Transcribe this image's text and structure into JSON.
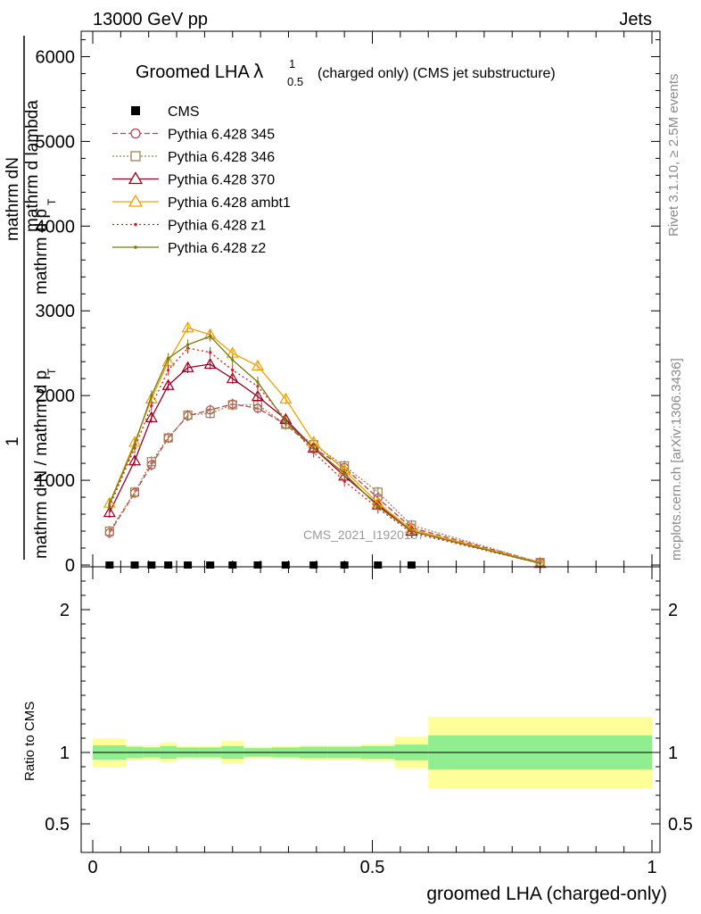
{
  "header": {
    "left": "13000 GeV pp",
    "right": "Jets"
  },
  "side": {
    "rivet": "Rivet 3.1.10, ≥ 2.5M events",
    "mcplots": "mcplots.cern.ch [arXiv:1306.3436]"
  },
  "watermark": "CMS_2021_I1920187",
  "chart_data": [
    {
      "type": "line",
      "title": {
        "main": "Groomed LHA ",
        "lambda": "λ",
        "sup": "1",
        "sub": "0.5",
        "rest": "(charged only) (CMS jet substructure)"
      },
      "ylabel": {
        "num_1": "1",
        "num_1b": "mathrm dN",
        "num_2": "mathrm d p",
        "num_2sub": "T",
        "num_2b": "mathrm d lambda",
        "den_1": "mathrm d N / mathrm d p",
        "den_1sub": "T",
        "den_2": "mathrm d p",
        "den_2sub": "T"
      },
      "xlim": [
        0,
        1
      ],
      "ylim": [
        0,
        6300
      ],
      "yticks": [
        {
          "v": 0,
          "label": "0"
        },
        {
          "v": 1000,
          "label": "1000"
        },
        {
          "v": 2000,
          "label": "2000"
        },
        {
          "v": 3000,
          "label": "3000"
        },
        {
          "v": 4000,
          "label": "4000"
        },
        {
          "v": 5000,
          "label": "5000"
        },
        {
          "v": 6000,
          "label": "6000"
        }
      ],
      "legend_position": "top-left",
      "cms_x": [
        0.03,
        0.075,
        0.105,
        0.135,
        0.17,
        0.21,
        0.25,
        0.295,
        0.345,
        0.395,
        0.45,
        0.51,
        0.57
      ],
      "cms_y": [
        0,
        0,
        0,
        0,
        0,
        0,
        0,
        0,
        0,
        0,
        0,
        0,
        0
      ],
      "x": [
        0.03,
        0.075,
        0.105,
        0.135,
        0.17,
        0.21,
        0.25,
        0.295,
        0.345,
        0.395,
        0.45,
        0.51,
        0.57,
        0.8
      ],
      "series": [
        {
          "name": "CMS",
          "color": "#000000",
          "marker": "square",
          "dash": "none"
        },
        {
          "name": "Pythia 6.428 345",
          "color": "#c04050",
          "marker": "circle",
          "dash": "6,3",
          "values": [
            380,
            850,
            1180,
            1500,
            1760,
            1830,
            1900,
            1850,
            1660,
            1380,
            1150,
            790,
            440,
            30
          ]
        },
        {
          "name": "Pythia 6.428 346",
          "color": "#a08050",
          "marker": "square_open",
          "dash": "2,2",
          "values": [
            400,
            860,
            1220,
            1500,
            1770,
            1790,
            1890,
            1890,
            1660,
            1420,
            1170,
            860,
            470,
            30
          ]
        },
        {
          "name": "Pythia 6.428 370",
          "color": "#990022",
          "marker": "triangle",
          "dash": "none",
          "values": [
            620,
            1230,
            1740,
            2120,
            2330,
            2370,
            2200,
            1990,
            1720,
            1380,
            1050,
            710,
            400,
            20
          ]
        },
        {
          "name": "Pythia 6.428 ambt1",
          "color": "#f0a000",
          "marker": "triangle",
          "dash": "none",
          "values": [
            730,
            1450,
            1960,
            2400,
            2800,
            2720,
            2500,
            2350,
            1960,
            1450,
            1120,
            730,
            420,
            25
          ]
        },
        {
          "name": "Pythia 6.428 z1",
          "color": "#cc2020",
          "marker": "dot",
          "dash": "2,3",
          "values": [
            690,
            1380,
            1880,
            2300,
            2560,
            2510,
            2300,
            2110,
            1720,
            1330,
            990,
            670,
            380,
            20
          ]
        },
        {
          "name": "Pythia 6.428 z2",
          "color": "#7a7a10",
          "marker": "dot",
          "dash": "none",
          "values": [
            720,
            1420,
            2000,
            2440,
            2600,
            2700,
            2420,
            2160,
            1690,
            1380,
            1080,
            690,
            400,
            20
          ]
        }
      ]
    },
    {
      "type": "area",
      "ylabel": "Ratio to CMS",
      "xlabel": "groomed LHA (charged-only)",
      "xlim": [
        0,
        1
      ],
      "ylim": [
        0.3,
        2.3
      ],
      "xticks": [
        {
          "v": 0,
          "label": "0"
        },
        {
          "v": 0.5,
          "label": "0.5"
        },
        {
          "v": 1,
          "label": "1"
        }
      ],
      "yticks": [
        {
          "v": 0.5,
          "label": "0.5"
        },
        {
          "v": 1,
          "label": "1"
        },
        {
          "v": 2,
          "label": "2"
        }
      ],
      "bins": [
        0,
        0.06,
        0.09,
        0.12,
        0.15,
        0.19,
        0.23,
        0.27,
        0.32,
        0.37,
        0.42,
        0.48,
        0.54,
        0.6,
        1.0
      ],
      "band_inner": [
        [
          0.95,
          1.05
        ],
        [
          0.96,
          1.04
        ],
        [
          0.965,
          1.035
        ],
        [
          0.955,
          1.045
        ],
        [
          0.965,
          1.035
        ],
        [
          0.965,
          1.035
        ],
        [
          0.955,
          1.045
        ],
        [
          0.97,
          1.03
        ],
        [
          0.965,
          1.035
        ],
        [
          0.96,
          1.04
        ],
        [
          0.96,
          1.04
        ],
        [
          0.955,
          1.045
        ],
        [
          0.945,
          1.055
        ],
        [
          0.88,
          1.12
        ]
      ],
      "band_outer": [
        [
          0.9,
          1.1
        ],
        [
          0.95,
          1.05
        ],
        [
          0.95,
          1.05
        ],
        [
          0.93,
          1.07
        ],
        [
          0.955,
          1.045
        ],
        [
          0.955,
          1.045
        ],
        [
          0.92,
          1.08
        ],
        [
          0.96,
          1.04
        ],
        [
          0.955,
          1.045
        ],
        [
          0.95,
          1.05
        ],
        [
          0.95,
          1.05
        ],
        [
          0.94,
          1.06
        ],
        [
          0.89,
          1.11
        ],
        [
          0.75,
          1.25
        ]
      ]
    }
  ]
}
